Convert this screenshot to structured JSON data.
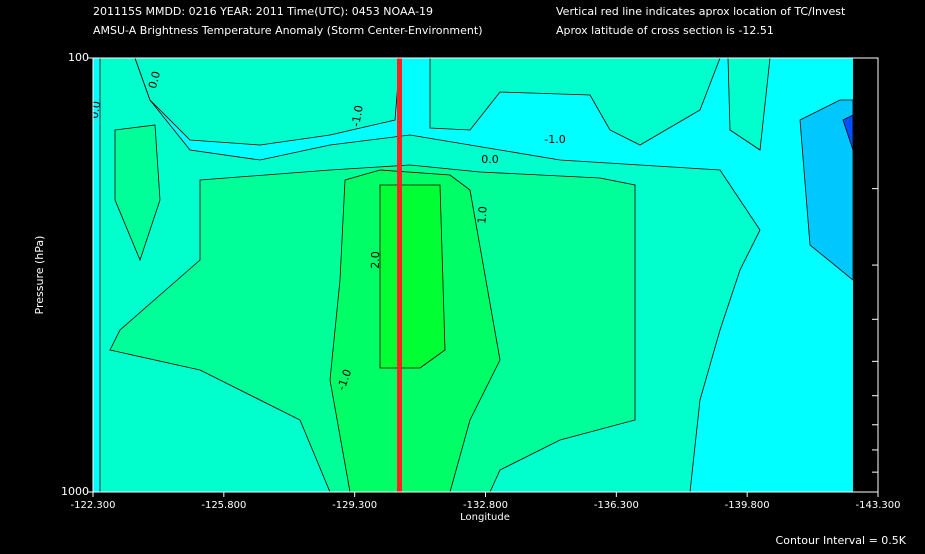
{
  "chart_data": {
    "type": "contour",
    "title_lines": [
      "201115S  MMDD: 0216 YEAR: 2011 Time(UTC): 0453 NOAA-19",
      "AMSU-A Brightness Temperature Anomaly (Storm Center-Environment)"
    ],
    "note_lines": [
      "Vertical red line indicates aprox location of TC/Invest",
      "Aprox latitude of cross section is -12.51"
    ],
    "x_label": "Longitude",
    "y_label": "Pressure (hPa)",
    "footer": "Contour Interval = 0.5K",
    "xlim": [
      -122.3,
      -143.3
    ],
    "xticks": [
      {
        "value": -122.3,
        "label": "-122.300"
      },
      {
        "value": -125.8,
        "label": "-125.800"
      },
      {
        "value": -129.3,
        "label": "-129.300"
      },
      {
        "value": -132.8,
        "label": "-132.800"
      },
      {
        "value": -136.3,
        "label": "-136.300"
      },
      {
        "value": -139.8,
        "label": "-139.800"
      },
      {
        "value": -143.3,
        "label": "-143.300"
      }
    ],
    "ylim": [
      1000,
      100
    ],
    "yticks": [
      100,
      1000
    ],
    "minor_yticks": [
      200,
      300,
      400,
      500,
      600,
      700,
      800,
      900
    ],
    "log_y": true,
    "tc_longitude": -130.5,
    "tc_line_color": "#ff2020",
    "band_colors": [
      "#00ffff",
      "#00ffcc",
      "#00ff99",
      "#00ff66",
      "#00ff33",
      "#00c8ff",
      "#0050ff"
    ],
    "contour_labels": [
      "0.0",
      "0.0",
      "-1.0",
      "-1.0",
      "0.0",
      "1.0",
      "2.0",
      "-1.0"
    ]
  }
}
